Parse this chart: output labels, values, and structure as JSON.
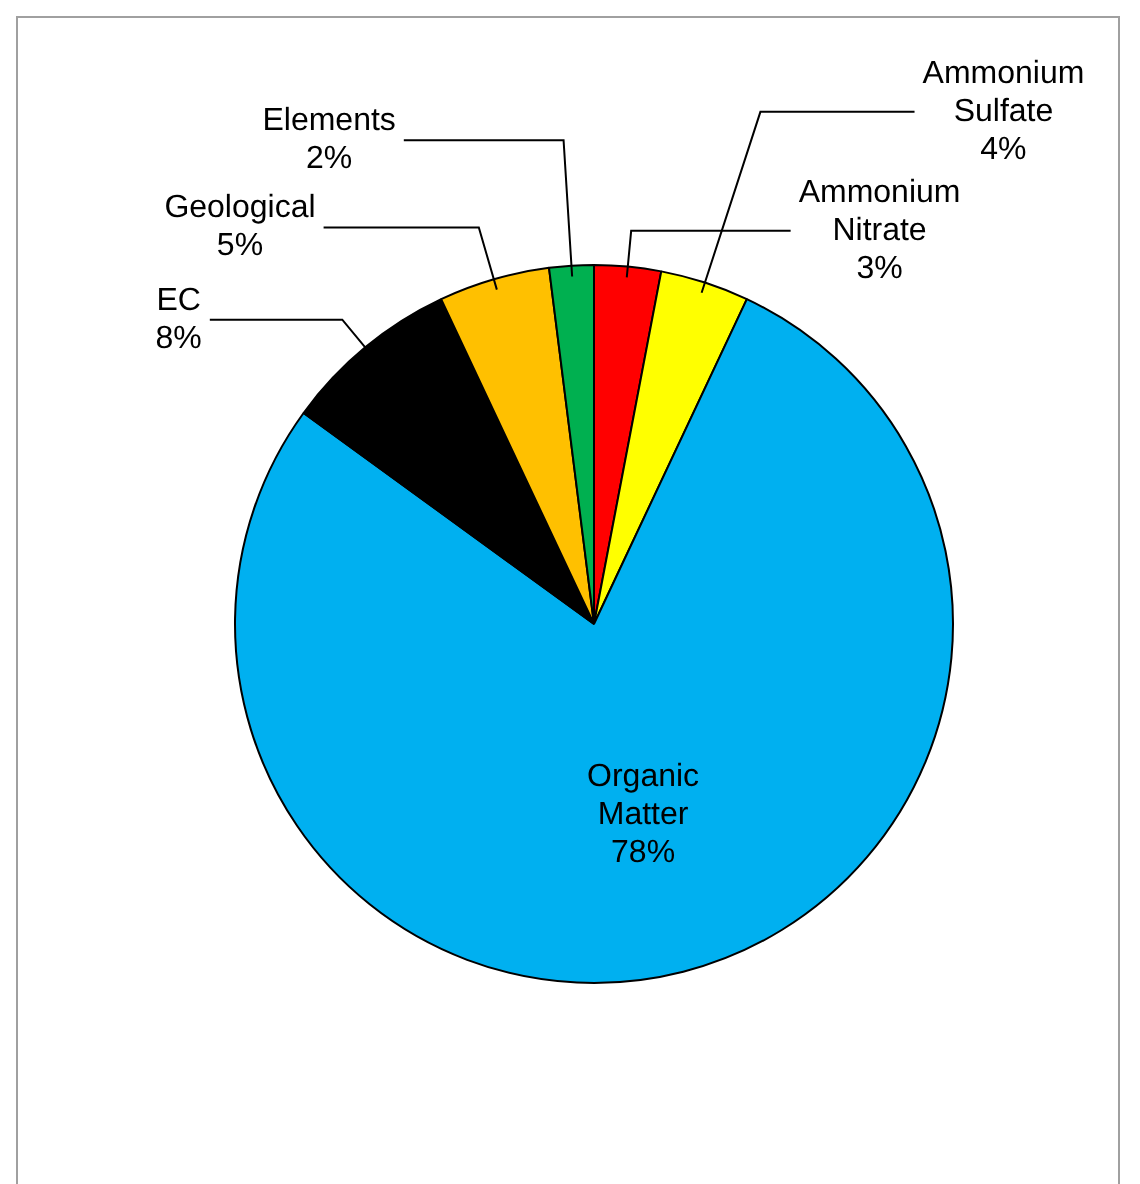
{
  "chart_data": {
    "type": "pie",
    "categories": [
      "Ammonium Nitrate",
      "Ammonium Sulfate",
      "Organic Matter",
      "EC",
      "Geological",
      "Elements"
    ],
    "values": [
      3,
      4,
      78,
      8,
      5,
      2
    ],
    "colors": [
      "#ff0000",
      "#ffff00",
      "#00b0f0",
      "#000000",
      "#ffc000",
      "#00b050"
    ],
    "value_labels": [
      "3%",
      "4%",
      "78%",
      "8%",
      "5%",
      "2%"
    ],
    "legend": false
  }
}
